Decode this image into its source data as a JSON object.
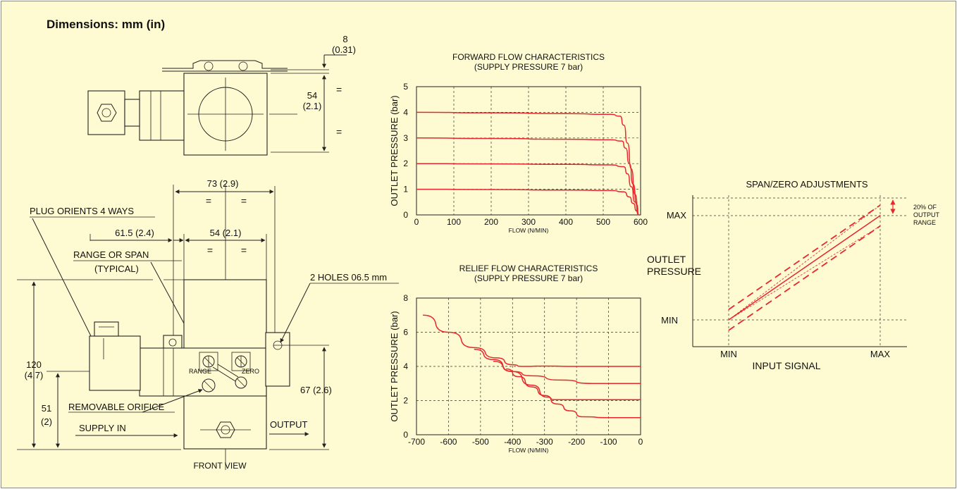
{
  "sheet": {
    "title": "Dimensions: mm (in)"
  },
  "drawing": {
    "top_dim_8": "8",
    "top_dim_8_in": "(0.31)",
    "dim_54_v": "54",
    "dim_54_v_in": "(2.1)",
    "equal": "=",
    "dim_73": "73 (2.9)",
    "dim_61_5": "61.5 (2.4)",
    "dim_54_h": "54 (2.1)",
    "plug_orients": "PLUG ORIENTS 4 WAYS",
    "range_or_span": "RANGE OR SPAN",
    "typical": "(TYPICAL)",
    "two_holes": "2 HOLES 06.5 mm",
    "range_label": "RANGE",
    "zero_label": "ZERO",
    "removable_orifice": "REMOVABLE ORIFICE",
    "supply_in": "SUPPLY IN",
    "output": "OUTPUT",
    "dim_120": "120",
    "dim_120_in": "(4.7)",
    "dim_51": "51",
    "dim_51_in": "(2)",
    "dim_67": "67 (2.6)",
    "front_view": "FRONT VIEW"
  },
  "colors": {
    "background": "#fefbd2",
    "curve": "#e8262e",
    "line": "#222222"
  },
  "chart_data": [
    {
      "type": "line",
      "title": "FORWARD FLOW CHARACTERISTICS",
      "subtitle": "(SUPPLY PRESSURE 7 bar)",
      "xlabel": "FLOW (N/MIN)",
      "ylabel": "OUTLET PRESSURE (bar)",
      "xlim": [
        0,
        600
      ],
      "ylim": [
        0,
        5
      ],
      "xticks": [
        "0",
        "100",
        "200",
        "300",
        "400",
        "500",
        "600"
      ],
      "yticks": [
        "0",
        "1",
        "2",
        "3",
        "4",
        "5"
      ],
      "grid": true,
      "series": [
        {
          "x": [
            0,
            200,
            400,
            520,
            545,
            555,
            565,
            575,
            585,
            595
          ],
          "y": [
            4.0,
            3.98,
            3.95,
            3.92,
            3.85,
            3.5,
            2.8,
            1.8,
            0.8,
            0.0
          ]
        },
        {
          "x": [
            0,
            200,
            400,
            520,
            550,
            560,
            570,
            580,
            590,
            595
          ],
          "y": [
            3.0,
            2.98,
            2.95,
            2.93,
            2.88,
            2.6,
            2.0,
            1.2,
            0.4,
            0.0
          ]
        },
        {
          "x": [
            0,
            200,
            400,
            520,
            555,
            565,
            575,
            585,
            595
          ],
          "y": [
            2.0,
            1.99,
            1.97,
            1.95,
            1.88,
            1.6,
            1.1,
            0.5,
            0.0
          ]
        },
        {
          "x": [
            0,
            200,
            400,
            520,
            555,
            570,
            580,
            590,
            595
          ],
          "y": [
            1.0,
            0.99,
            0.97,
            0.95,
            0.9,
            0.7,
            0.45,
            0.15,
            0.0
          ]
        }
      ]
    },
    {
      "type": "line",
      "title": "RELIEF FLOW CHARACTERISTICS",
      "subtitle": "(SUPPLY PRESSURE 7 bar)",
      "xlabel": "FLOW (N/MIN)",
      "ylabel": "OUTLET PRESSURE (bar)",
      "xlim": [
        -700,
        0
      ],
      "ylim": [
        0,
        8
      ],
      "xticks": [
        "-700",
        "-600",
        "-500",
        "-400",
        "-300",
        "-200",
        "-100",
        "0"
      ],
      "yticks": [
        "0",
        "2",
        "4",
        "6",
        "8"
      ],
      "grid": true,
      "series": [
        {
          "x": [
            -680,
            -600,
            -520,
            -450,
            -400,
            -370,
            -300,
            -200,
            -100,
            0
          ],
          "y": [
            7.0,
            6.0,
            5.1,
            4.5,
            4.1,
            4.0,
            4.02,
            4.0,
            4.0,
            4.0
          ]
        },
        {
          "x": [
            -520,
            -460,
            -400,
            -340,
            -250,
            -150,
            -50,
            0
          ],
          "y": [
            5.0,
            4.4,
            3.7,
            3.45,
            3.2,
            3.0,
            3.0,
            3.0
          ]
        },
        {
          "x": [
            -460,
            -400,
            -340,
            -290,
            -270,
            -200,
            -100,
            0
          ],
          "y": [
            4.3,
            3.7,
            2.9,
            2.2,
            2.05,
            2.05,
            2.05,
            2.05
          ]
        },
        {
          "x": [
            -420,
            -380,
            -340,
            -300,
            -260,
            -220,
            -180,
            -100,
            0
          ],
          "y": [
            3.85,
            3.4,
            2.8,
            2.3,
            1.8,
            1.4,
            1.05,
            1.0,
            1.0
          ]
        }
      ]
    },
    {
      "type": "line",
      "title": "SPAN/ZERO ADJUSTMENTS",
      "xlabel": "INPUT SIGNAL",
      "ylabel_line1": "OUTLET",
      "ylabel_line2": "PRESSURE",
      "x_min_label": "MIN",
      "x_max_label": "MAX",
      "y_min_label": "MIN",
      "y_max_label": "MAX",
      "annotation": [
        "20% OF",
        "OUTPUT",
        "RANGE"
      ],
      "grid": true,
      "series": [
        {
          "style": "solid",
          "x": [
            0,
            1
          ],
          "y": [
            0,
            1
          ]
        },
        {
          "style": "dashed",
          "x": [
            0,
            1
          ],
          "y": [
            0.1,
            1.1
          ]
        },
        {
          "style": "dashed",
          "x": [
            0,
            1
          ],
          "y": [
            -0.1,
            0.9
          ]
        },
        {
          "style": "dotted",
          "x": [
            0,
            1
          ],
          "y": [
            0,
            1.1
          ]
        },
        {
          "style": "dotted",
          "x": [
            0,
            1
          ],
          "y": [
            0,
            0.9
          ]
        }
      ]
    }
  ]
}
